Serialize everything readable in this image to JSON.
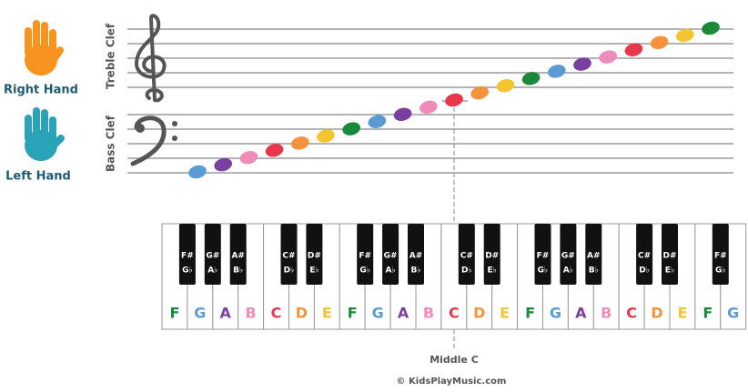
{
  "hands": {
    "right": "Right Hand",
    "left": "Left Hand"
  },
  "staff": {
    "treble": "Treble Clef",
    "bass": "Bass Clef"
  },
  "keyboard": {
    "white_keys": [
      "F",
      "G",
      "A",
      "B",
      "C",
      "D",
      "E",
      "F",
      "G",
      "A",
      "B",
      "C",
      "D",
      "E",
      "F",
      "G",
      "A",
      "B",
      "C",
      "D",
      "E",
      "F",
      "G"
    ],
    "black_keys": [
      {
        "sharp": "F#",
        "flat": "G♭"
      },
      {
        "sharp": "G#",
        "flat": "A♭"
      },
      {
        "sharp": "A#",
        "flat": "B♭"
      },
      null,
      {
        "sharp": "C#",
        "flat": "D♭"
      },
      {
        "sharp": "D#",
        "flat": "E♭"
      },
      null,
      {
        "sharp": "F#",
        "flat": "G♭"
      },
      {
        "sharp": "G#",
        "flat": "A♭"
      },
      {
        "sharp": "A#",
        "flat": "B♭"
      },
      null,
      {
        "sharp": "C#",
        "flat": "D♭"
      },
      {
        "sharp": "D#",
        "flat": "E♭"
      },
      null,
      {
        "sharp": "F#",
        "flat": "G♭"
      },
      {
        "sharp": "G#",
        "flat": "A♭"
      },
      {
        "sharp": "A#",
        "flat": "B♭"
      },
      null,
      {
        "sharp": "C#",
        "flat": "D♭"
      },
      {
        "sharp": "D#",
        "flat": "E♭"
      },
      null,
      {
        "sharp": "F#",
        "flat": "G♭"
      }
    ]
  },
  "middle_c": "Middle C",
  "footer": "© KidsPlayMusic.com"
}
